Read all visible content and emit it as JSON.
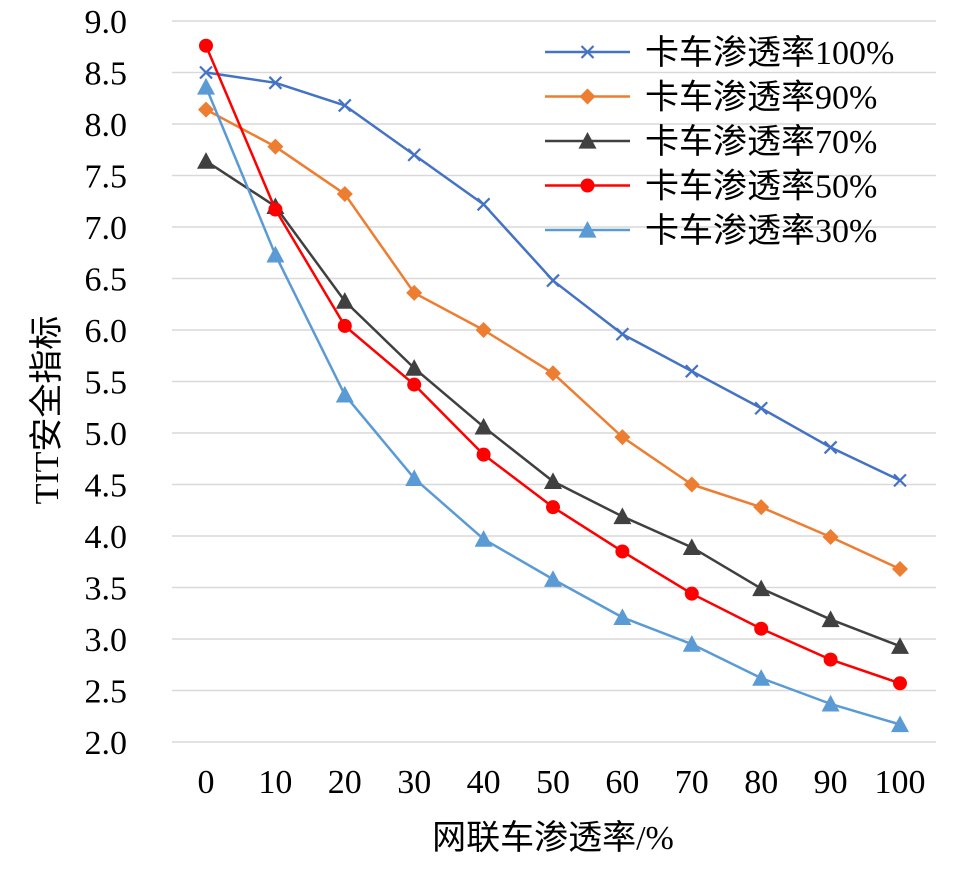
{
  "chart_data": {
    "type": "line",
    "title": "",
    "xlabel": "网联车渗透率/%",
    "ylabel": "TIT安全指标",
    "x": [
      0,
      10,
      20,
      30,
      40,
      50,
      60,
      70,
      80,
      90,
      100
    ],
    "xticks": [
      "0",
      "10",
      "20",
      "30",
      "40",
      "50",
      "60",
      "70",
      "80",
      "90",
      "100"
    ],
    "yticks": [
      "2.0",
      "2.5",
      "3.0",
      "3.5",
      "4.0",
      "4.5",
      "5.0",
      "5.5",
      "6.0",
      "6.5",
      "7.0",
      "7.5",
      "8.0",
      "8.5",
      "9.0"
    ],
    "ylim": [
      2.0,
      9.0
    ],
    "grid": true,
    "legend_position": "top-right",
    "series": [
      {
        "name": "卡车渗透率100%",
        "color": "#4472C4",
        "marker": "x",
        "values": [
          8.5,
          8.4,
          8.18,
          7.7,
          7.22,
          6.48,
          5.96,
          5.6,
          5.24,
          4.86,
          4.54
        ]
      },
      {
        "name": "卡车渗透率90%",
        "color": "#ED7D31",
        "marker": "diamond",
        "values": [
          8.14,
          7.78,
          7.32,
          6.36,
          6.0,
          5.58,
          4.96,
          4.5,
          4.28,
          3.99,
          3.68
        ]
      },
      {
        "name": "卡车渗透率70%",
        "color": "#404040",
        "marker": "triangle",
        "values": [
          7.64,
          7.2,
          6.28,
          5.63,
          5.06,
          4.53,
          4.19,
          3.89,
          3.49,
          3.19,
          2.93
        ]
      },
      {
        "name": "卡车渗透率50%",
        "color": "#FF0000",
        "marker": "circle",
        "values": [
          8.76,
          7.17,
          6.04,
          5.47,
          4.79,
          4.28,
          3.85,
          3.44,
          3.1,
          2.8,
          2.57
        ]
      },
      {
        "name": "卡车渗透率30%",
        "color": "#5B9BD5",
        "marker": "triangle",
        "values": [
          8.36,
          6.73,
          5.37,
          4.56,
          3.97,
          3.58,
          3.21,
          2.95,
          2.62,
          2.37,
          2.17
        ]
      }
    ]
  }
}
